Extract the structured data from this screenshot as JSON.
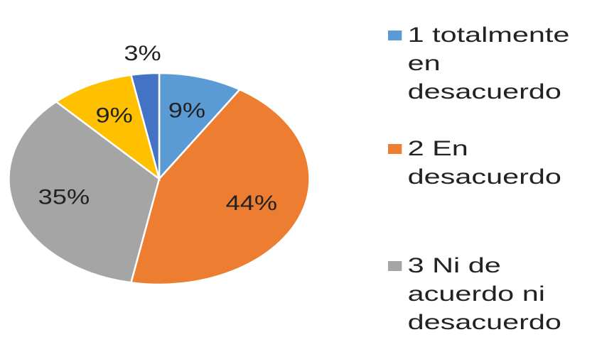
{
  "chart_data": {
    "type": "pie",
    "categories": [
      "1 totalmente en desacuerdo",
      "2 En desacuerdo",
      "3 Ni de acuerdo ni desacuerdo",
      null,
      null
    ],
    "values": [
      9,
      44,
      35,
      9,
      3
    ],
    "value_labels": [
      "9%",
      "44%",
      "35%",
      "9%",
      "3%"
    ],
    "colors": [
      "#5b9bd5",
      "#ed7d31",
      "#a5a5a5",
      "#ffc000",
      "#4472c4"
    ]
  }
}
